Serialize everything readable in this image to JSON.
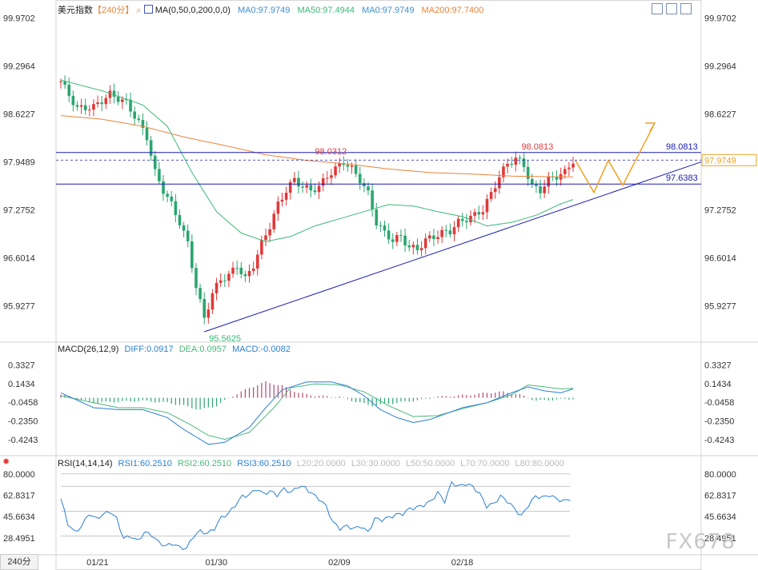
{
  "header": {
    "symbol": "美元指数",
    "period_tag": "【240分】",
    "ma_name": "MA(0,50,0,200,0,0)",
    "ma_values": [
      "MA0:97.9749",
      "MA50:97.4944",
      "MA0:97.9749",
      "MA200:97.7400"
    ]
  },
  "macd_header": {
    "name": "MACD(26,12,9)",
    "values": [
      "DIFF:0.0917",
      "DEA:0.0957",
      "MACD:-0.0082"
    ]
  },
  "rsi_header": {
    "name": "RSI(14,14,14)",
    "values": [
      "RSI1:60.2510",
      "RSI2:60.2510",
      "RSI3:60.2510",
      "L20:20.0000",
      "L30:30.0000",
      "L50:50.0000",
      "L70:70.0000",
      "L80:80.0000"
    ]
  },
  "period_button": "240分",
  "watermark": "FX678",
  "colors": {
    "up": "#e03a3a",
    "down": "#2aa66f",
    "ma50": "#3cb878",
    "ma200": "#e8843a",
    "ma0": "#3f8fd0",
    "level": "#1b1bb0",
    "forecast": "#f2a01e",
    "diff": "#2a7fd4",
    "dea": "#4cb87a"
  },
  "chart_data": [
    {
      "type": "candlestick",
      "price_axis_ticks": [
        "99.9702",
        "99.2964",
        "98.6227",
        "97.9489",
        "97.2752",
        "96.6014",
        "95.9277"
      ],
      "time_ticks": [
        "01/21",
        "01/30",
        "02/09",
        "02/18"
      ],
      "annotations": {
        "high1": "98.0312",
        "high2": "98.0813",
        "low": "95.5625"
      },
      "levels": {
        "resistance": "98.0813",
        "support": "97.6383"
      },
      "current_price": "97.9749",
      "ylim": [
        95.45,
        100.0
      ],
      "anchors": [
        [
          0,
          99.08
        ],
        [
          4,
          98.7
        ],
        [
          8,
          98.72
        ],
        [
          12,
          98.9
        ],
        [
          16,
          98.78
        ],
        [
          19,
          98.5
        ],
        [
          21,
          98.3
        ],
        [
          23,
          97.8
        ],
        [
          25,
          97.55
        ],
        [
          27,
          97.35
        ],
        [
          29,
          97.1
        ],
        [
          31,
          96.8
        ],
        [
          33,
          96.2
        ],
        [
          35,
          95.75
        ],
        [
          37,
          96.1
        ],
        [
          39,
          96.3
        ],
        [
          41,
          96.35
        ],
        [
          43,
          96.5
        ],
        [
          45,
          96.3
        ],
        [
          47,
          96.5
        ],
        [
          49,
          96.8
        ],
        [
          51,
          97.05
        ],
        [
          53,
          97.35
        ],
        [
          55,
          97.55
        ],
        [
          57,
          97.7
        ],
        [
          59,
          97.6
        ],
        [
          61,
          97.55
        ],
        [
          63,
          97.6
        ],
        [
          65,
          97.75
        ],
        [
          67,
          97.85
        ],
        [
          69,
          97.95
        ],
        [
          71,
          97.85
        ],
        [
          73,
          97.7
        ],
        [
          75,
          97.5
        ],
        [
          77,
          97.1
        ],
        [
          79,
          96.95
        ],
        [
          81,
          96.85
        ],
        [
          83,
          96.9
        ],
        [
          85,
          96.75
        ],
        [
          87,
          96.72
        ],
        [
          89,
          96.85
        ],
        [
          91,
          96.9
        ],
        [
          93,
          96.95
        ],
        [
          95,
          96.98
        ],
        [
          97,
          97.1
        ],
        [
          99,
          97.15
        ],
        [
          101,
          97.2
        ],
        [
          103,
          97.28
        ],
        [
          105,
          97.5
        ],
        [
          107,
          97.75
        ],
        [
          109,
          97.92
        ],
        [
          111,
          98.0
        ],
        [
          113,
          97.9
        ],
        [
          115,
          97.6
        ],
        [
          117,
          97.55
        ],
        [
          119,
          97.7
        ],
        [
          121,
          97.75
        ],
        [
          123,
          97.8
        ],
        [
          125,
          97.97
        ]
      ],
      "ma50": [
        [
          0,
          99.1
        ],
        [
          10,
          98.95
        ],
        [
          20,
          98.75
        ],
        [
          26,
          98.45
        ],
        [
          32,
          97.8
        ],
        [
          38,
          97.25
        ],
        [
          44,
          96.95
        ],
        [
          50,
          96.83
        ],
        [
          56,
          96.9
        ],
        [
          62,
          97.05
        ],
        [
          68,
          97.15
        ],
        [
          74,
          97.25
        ],
        [
          80,
          97.35
        ],
        [
          86,
          97.33
        ],
        [
          92,
          97.25
        ],
        [
          98,
          97.18
        ],
        [
          104,
          97.05
        ],
        [
          110,
          97.1
        ],
        [
          116,
          97.2
        ],
        [
          122,
          97.36
        ],
        [
          125,
          97.42
        ]
      ],
      "ma200": [
        [
          0,
          98.6
        ],
        [
          10,
          98.55
        ],
        [
          20,
          98.45
        ],
        [
          30,
          98.3
        ],
        [
          40,
          98.18
        ],
        [
          50,
          98.05
        ],
        [
          60,
          97.97
        ],
        [
          70,
          97.92
        ],
        [
          80,
          97.85
        ],
        [
          90,
          97.8
        ],
        [
          100,
          97.78
        ],
        [
          110,
          97.75
        ],
        [
          120,
          97.74
        ],
        [
          125,
          97.74
        ]
      ]
    },
    {
      "type": "bar",
      "name": "MACD",
      "axis_ticks": [
        "0.3327",
        "0.1434",
        "-0.0458",
        "-0.2350",
        "-0.4243"
      ],
      "ylim": [
        -0.52,
        0.4
      ],
      "diff": [
        [
          0,
          0.05
        ],
        [
          8,
          -0.1
        ],
        [
          14,
          -0.12
        ],
        [
          20,
          -0.12
        ],
        [
          26,
          -0.2
        ],
        [
          30,
          -0.32
        ],
        [
          36,
          -0.47
        ],
        [
          40,
          -0.45
        ],
        [
          46,
          -0.3
        ],
        [
          50,
          -0.1
        ],
        [
          54,
          0.08
        ],
        [
          60,
          0.16
        ],
        [
          66,
          0.16
        ],
        [
          70,
          0.12
        ],
        [
          74,
          0.02
        ],
        [
          78,
          -0.12
        ],
        [
          82,
          -0.2
        ],
        [
          86,
          -0.25
        ],
        [
          90,
          -0.22
        ],
        [
          94,
          -0.16
        ],
        [
          98,
          -0.1
        ],
        [
          104,
          -0.05
        ],
        [
          110,
          0.05
        ],
        [
          114,
          0.11
        ],
        [
          118,
          0.07
        ],
        [
          122,
          0.05
        ],
        [
          125,
          0.09
        ]
      ],
      "dea": [
        [
          0,
          0.02
        ],
        [
          8,
          -0.05
        ],
        [
          14,
          -0.1
        ],
        [
          20,
          -0.1
        ],
        [
          26,
          -0.15
        ],
        [
          32,
          -0.28
        ],
        [
          36,
          -0.38
        ],
        [
          40,
          -0.42
        ],
        [
          46,
          -0.35
        ],
        [
          52,
          -0.1
        ],
        [
          56,
          0.1
        ],
        [
          62,
          0.14
        ],
        [
          68,
          0.13
        ],
        [
          74,
          0.06
        ],
        [
          80,
          -0.08
        ],
        [
          86,
          -0.19
        ],
        [
          92,
          -0.18
        ],
        [
          98,
          -0.11
        ],
        [
          104,
          -0.05
        ],
        [
          110,
          0.03
        ],
        [
          114,
          0.13
        ],
        [
          118,
          0.11
        ],
        [
          122,
          0.09
        ],
        [
          125,
          0.095
        ]
      ],
      "hist": [
        [
          0,
          0.03
        ],
        [
          8,
          -0.05
        ],
        [
          14,
          -0.04
        ],
        [
          20,
          -0.03
        ],
        [
          26,
          -0.05
        ],
        [
          30,
          -0.08
        ],
        [
          34,
          -0.12
        ],
        [
          38,
          -0.08
        ],
        [
          42,
          0.02
        ],
        [
          46,
          0.1
        ],
        [
          50,
          0.16
        ],
        [
          54,
          0.12
        ],
        [
          58,
          0.05
        ],
        [
          62,
          0.02
        ],
        [
          68,
          0.01
        ],
        [
          72,
          -0.04
        ],
        [
          76,
          -0.08
        ],
        [
          80,
          -0.06
        ],
        [
          84,
          -0.04
        ],
        [
          88,
          -0.02
        ],
        [
          92,
          0.01
        ],
        [
          96,
          0.02
        ],
        [
          100,
          0.03
        ],
        [
          104,
          0.05
        ],
        [
          108,
          0.06
        ],
        [
          112,
          0.03
        ],
        [
          116,
          -0.03
        ],
        [
          120,
          -0.02
        ],
        [
          125,
          -0.01
        ]
      ]
    },
    {
      "type": "line",
      "name": "RSI",
      "axis_ticks": [
        "80.0000",
        "62.8317",
        "45.6634",
        "28.4951"
      ],
      "ylim": [
        17.5,
        85.0
      ],
      "levels": [
        80,
        70,
        50,
        30
      ],
      "rsi": [
        [
          0,
          60
        ],
        [
          2,
          40
        ],
        [
          4,
          33
        ],
        [
          6,
          38
        ],
        [
          8,
          48
        ],
        [
          10,
          44
        ],
        [
          12,
          47
        ],
        [
          14,
          50
        ],
        [
          16,
          44
        ],
        [
          18,
          28
        ],
        [
          20,
          30
        ],
        [
          22,
          26
        ],
        [
          24,
          33
        ],
        [
          26,
          31
        ],
        [
          28,
          25
        ],
        [
          30,
          22
        ],
        [
          32,
          24
        ],
        [
          34,
          21
        ],
        [
          36,
          20
        ],
        [
          38,
          30
        ],
        [
          40,
          34
        ],
        [
          42,
          32
        ],
        [
          44,
          36
        ],
        [
          46,
          45
        ],
        [
          48,
          48
        ],
        [
          50,
          55
        ],
        [
          52,
          62
        ],
        [
          54,
          63
        ],
        [
          56,
          68
        ],
        [
          58,
          64
        ],
        [
          60,
          66
        ],
        [
          62,
          63
        ],
        [
          64,
          68
        ],
        [
          66,
          65
        ],
        [
          68,
          70
        ],
        [
          70,
          69
        ],
        [
          72,
          64
        ],
        [
          74,
          60
        ],
        [
          76,
          54
        ],
        [
          78,
          41
        ],
        [
          80,
          36
        ],
        [
          82,
          38
        ],
        [
          84,
          36
        ],
        [
          86,
          38
        ],
        [
          88,
          33
        ],
        [
          90,
          44
        ],
        [
          92,
          43
        ],
        [
          94,
          45
        ],
        [
          96,
          47
        ],
        [
          98,
          48
        ],
        [
          100,
          52
        ],
        [
          102,
          53
        ],
        [
          104,
          55
        ],
        [
          106,
          58
        ],
        [
          108,
          65
        ],
        [
          110,
          58
        ],
        [
          112,
          73
        ],
        [
          114,
          70
        ],
        [
          116,
          72
        ],
        [
          118,
          70
        ],
        [
          120,
          64
        ],
        [
          122,
          54
        ],
        [
          124,
          56
        ],
        [
          126,
          62
        ],
        [
          128,
          58
        ],
        [
          130,
          52
        ],
        [
          132,
          46
        ],
        [
          134,
          55
        ],
        [
          136,
          62
        ],
        [
          138,
          61
        ],
        [
          140,
          63
        ],
        [
          142,
          60
        ],
        [
          144,
          58
        ],
        [
          146,
          60
        ]
      ]
    }
  ]
}
